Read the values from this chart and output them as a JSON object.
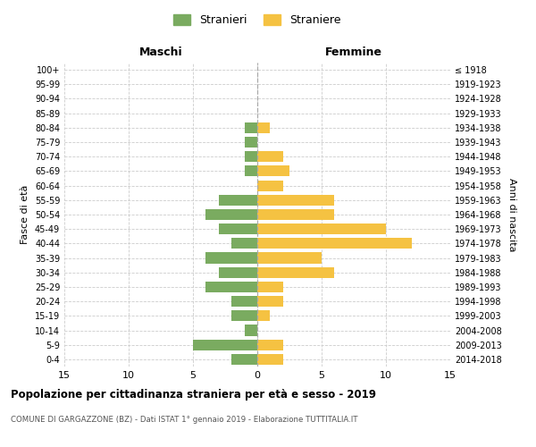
{
  "age_groups": [
    "0-4",
    "5-9",
    "10-14",
    "15-19",
    "20-24",
    "25-29",
    "30-34",
    "35-39",
    "40-44",
    "45-49",
    "50-54",
    "55-59",
    "60-64",
    "65-69",
    "70-74",
    "75-79",
    "80-84",
    "85-89",
    "90-94",
    "95-99",
    "100+"
  ],
  "birth_years": [
    "2014-2018",
    "2009-2013",
    "2004-2008",
    "1999-2003",
    "1994-1998",
    "1989-1993",
    "1984-1988",
    "1979-1983",
    "1974-1978",
    "1969-1973",
    "1964-1968",
    "1959-1963",
    "1954-1958",
    "1949-1953",
    "1944-1948",
    "1939-1943",
    "1934-1938",
    "1929-1933",
    "1924-1928",
    "1919-1923",
    "≤ 1918"
  ],
  "maschi": [
    2,
    5,
    1,
    2,
    2,
    4,
    3,
    4,
    2,
    3,
    4,
    3,
    0,
    1,
    1,
    1,
    1,
    0,
    0,
    0,
    0
  ],
  "femmine": [
    2,
    2,
    0,
    1,
    2,
    2,
    6,
    5,
    12,
    10,
    6,
    6,
    2,
    2.5,
    2,
    0,
    1,
    0,
    0,
    0,
    0
  ],
  "color_maschi": "#7aab60",
  "color_femmine": "#f5c242",
  "background_color": "#ffffff",
  "grid_color": "#cccccc",
  "title": "Popolazione per cittadinanza straniera per età e sesso - 2019",
  "subtitle": "COMUNE DI GARGAZZONE (BZ) - Dati ISTAT 1° gennaio 2019 - Elaborazione TUTTITALIA.IT",
  "ylabel_left": "Fasce di età",
  "ylabel_right": "Anni di nascita",
  "legend_maschi": "Stranieri",
  "legend_femmine": "Straniere",
  "xlim": 15,
  "header_maschi": "Maschi",
  "header_femmine": "Femmine"
}
